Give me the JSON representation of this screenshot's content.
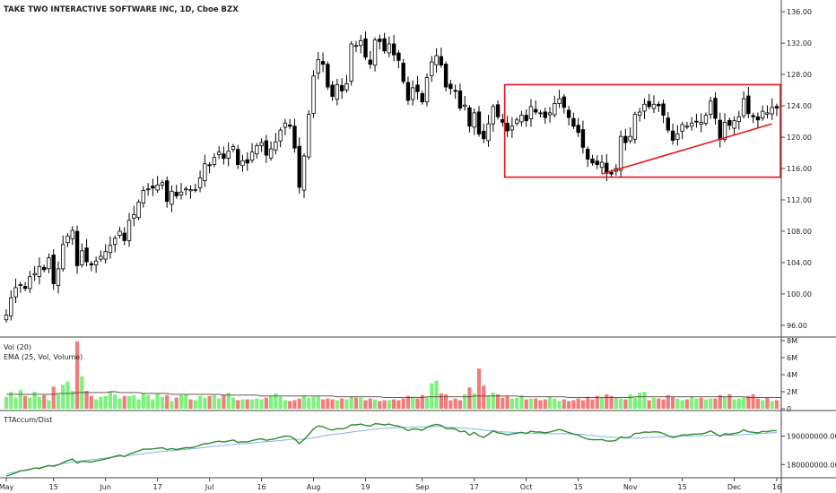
{
  "header": {
    "title": "TAKE TWO INTERACTIVE SOFTWARE INC, 1D, Cboe BZX"
  },
  "volume_pane": {
    "label1": "Vol (20)",
    "label2": "EMA (25, Vol, Volume)"
  },
  "indicator_pane": {
    "label": "TTAccum/Dist"
  },
  "colors": {
    "up_volume": "#7cf27c",
    "down_volume": "#f27b7b",
    "pattern": "#e8141e",
    "accum_line": "#2e8b2e",
    "accum_avg": "#7fb5e8",
    "candle": "#000000",
    "ema": "#5a3b3b"
  },
  "chart_data": [
    {
      "type": "candlestick",
      "title": "TAKE TWO INTERACTIVE SOFTWARE INC, 1D, Cboe BZX",
      "xlabel": "",
      "ylabel": "",
      "x_ticks": [
        "May",
        "15",
        "Jun",
        "17",
        "Jul",
        "16",
        "Aug",
        "19",
        "Sep",
        "17",
        "Oct",
        "15",
        "Nov",
        "15",
        "Dec",
        "16"
      ],
      "y_ticks": [
        "136.00",
        "132.00",
        "128.00",
        "124.00",
        "120.00",
        "116.00",
        "112.00",
        "108.00",
        "104.00",
        "100.00",
        "96.00"
      ],
      "ylim": [
        94.5,
        137.5
      ],
      "grid": false,
      "close": [
        97.3,
        99.5,
        100.8,
        101.2,
        100.7,
        102.2,
        102.6,
        103.5,
        103.1,
        104.6,
        101.3,
        103.2,
        106.3,
        107.4,
        108.1,
        103.6,
        105.5,
        104.1,
        103.7,
        104.2,
        104.8,
        105.4,
        106.2,
        107.1,
        108.0,
        106.8,
        109.4,
        110.1,
        111.7,
        113.2,
        113.4,
        113.5,
        113.9,
        114.2,
        111.8,
        113.1,
        112.5,
        113.0,
        113.4,
        113.3,
        113.3,
        114.8,
        116.6,
        116.4,
        117.4,
        118.1,
        117.3,
        118.2,
        118.8,
        116.5,
        117.0,
        116.7,
        118.1,
        118.9,
        119.3,
        117.7,
        118.5,
        119.4,
        120.9,
        121.8,
        121.4,
        118.6,
        113.6,
        117.6,
        122.9,
        127.8,
        129.9,
        129.3,
        126.4,
        125.2,
        126.7,
        125.9,
        126.8,
        131.9,
        131.7,
        132.3,
        130.2,
        129.3,
        132.4,
        132.2,
        131.0,
        131.9,
        130.5,
        129.8,
        127.1,
        124.7,
        126.3,
        125.8,
        124.5,
        127.6,
        129.6,
        130.4,
        129.2,
        126.4,
        126.2,
        125.9,
        123.7,
        124.1,
        121.4,
        123.1,
        120.4,
        119.8,
        121.7,
        123.9,
        122.6,
        121.9,
        120.8,
        121.4,
        122.2,
        122.8,
        122.1,
        123.9,
        123.2,
        123.1,
        122.5,
        123.1,
        124.3,
        124.9,
        123.8,
        122.5,
        121.4,
        120.6,
        118.7,
        117.2,
        116.7,
        116.5,
        116.8,
        115.4,
        115.3,
        116.0,
        120.1,
        119.3,
        120.1,
        122.9,
        123.2,
        124.2,
        123.9,
        124.2,
        124.0,
        122.8,
        120.9,
        119.6,
        120.4,
        121.6,
        121.4,
        121.8,
        122.0,
        121.9,
        122.8,
        124.6,
        122.4,
        119.7,
        121.9,
        121.5,
        122.1,
        122.6,
        124.9,
        123.0,
        122.6,
        122.2,
        123.3,
        123.1,
        123.8,
        123.7
      ]
    },
    {
      "type": "bar",
      "title": "Vol (20)",
      "series_names": [
        "Vol (20)",
        "EMA (25, Vol, Volume)"
      ],
      "y_ticks": [
        "8M",
        "6M",
        "4M",
        "2M",
        "0"
      ],
      "ylim": [
        0,
        8000000
      ],
      "volume": [
        1400000,
        2000000,
        1300000,
        2200000,
        1500000,
        1300000,
        2000000,
        1400000,
        1600000,
        1000000,
        2600000,
        1700000,
        2800000,
        3200000,
        2100000,
        7900000,
        3800000,
        2100000,
        1500000,
        1100000,
        1400000,
        1500000,
        2000000,
        1700000,
        1200000,
        1500000,
        1500000,
        1600000,
        1100000,
        1800000,
        1600000,
        1100000,
        1800000,
        1400000,
        1600000,
        900000,
        1300000,
        1600000,
        1700000,
        1100000,
        1000000,
        1500000,
        1300000,
        1500000,
        1600000,
        1200000,
        1600000,
        1900000,
        1300000,
        1000000,
        1100000,
        1100000,
        1100000,
        1200000,
        1100000,
        1300000,
        1500000,
        1800000,
        1400000,
        1000000,
        900000,
        1000000,
        1200000,
        1600000,
        1300000,
        1400000,
        1500000,
        1100000,
        1200000,
        1100000,
        1000000,
        1200000,
        1100000,
        1400000,
        1300000,
        1300000,
        1000000,
        1200000,
        1100000,
        900000,
        1000000,
        1000000,
        1100000,
        1000000,
        1200000,
        1500000,
        1400000,
        1200000,
        1600000,
        1400000,
        3000000,
        3300000,
        1800000,
        1700000,
        1000000,
        1200000,
        1000000,
        1700000,
        2500000,
        1800000,
        4700000,
        2700000,
        1500000,
        1900000,
        1700000,
        1300000,
        1500000,
        1200000,
        1300000,
        1600000,
        1100000,
        1200000,
        1200000,
        1000000,
        1100000,
        1400000,
        1200000,
        900000,
        1100000,
        900000,
        1000000,
        1200000,
        1000000,
        1400000,
        1100000,
        1500000,
        1300000,
        1700000,
        1500000,
        1300000,
        1200000,
        1100000,
        1700000,
        1300000,
        1900000,
        2000000,
        1000000,
        1300000,
        1200000,
        1100000,
        1600000,
        1400000,
        1200000,
        1000000,
        1100000,
        1400000,
        1200000,
        1300000,
        1100000,
        1200000,
        1200000,
        1600000,
        1400000,
        1700000,
        1100000,
        1200000,
        1300000,
        1500000,
        1700000,
        1200000,
        1000000,
        1300000,
        900000,
        1000000,
        900000,
        1100000
      ],
      "ema": [
        1700000,
        1700000,
        1700000,
        1700000,
        1700000,
        1700000,
        1700000,
        1700000,
        1700000,
        1700000,
        1700000,
        1800000,
        1800000,
        1800000,
        1800000,
        1900000,
        1900000,
        1900000,
        1900000,
        1900000,
        1900000,
        1900000,
        2000000,
        2000000,
        1900000,
        1900000,
        1900000,
        1900000,
        1900000,
        1800000,
        1800000,
        1800000,
        1800000,
        1800000,
        1800000,
        1700000,
        1700000,
        1700000,
        1700000,
        1700000,
        1700000,
        1700000,
        1700000,
        1700000,
        1700000,
        1700000,
        1600000,
        1600000,
        1600000,
        1600000,
        1600000,
        1600000,
        1600000,
        1600000,
        1500000,
        1500000,
        1500000,
        1500000,
        1500000,
        1500000,
        1500000,
        1500000,
        1500000,
        1500000,
        1500000,
        1500000,
        1500000,
        1500000,
        1500000,
        1500000,
        1400000,
        1400000,
        1400000,
        1400000,
        1400000,
        1400000,
        1400000,
        1400000,
        1400000,
        1400000,
        1300000,
        1300000,
        1300000,
        1300000,
        1300000,
        1300000,
        1300000,
        1300000,
        1300000,
        1400000,
        1400000,
        1400000,
        1400000,
        1400000,
        1400000,
        1400000,
        1400000,
        1400000,
        1400000,
        1500000,
        1500000,
        1500000,
        1500000,
        1500000,
        1500000,
        1500000,
        1500000,
        1500000,
        1500000,
        1400000,
        1400000,
        1400000,
        1400000,
        1400000,
        1400000,
        1400000,
        1400000,
        1400000,
        1400000,
        1300000,
        1300000,
        1300000,
        1300000,
        1300000,
        1300000,
        1300000,
        1300000,
        1300000,
        1300000,
        1300000,
        1300000,
        1300000,
        1300000,
        1400000,
        1400000,
        1400000,
        1400000,
        1400000,
        1400000,
        1400000,
        1400000,
        1400000,
        1400000,
        1400000,
        1400000,
        1400000,
        1400000,
        1400000,
        1400000,
        1400000,
        1400000,
        1400000,
        1400000,
        1400000,
        1400000,
        1400000,
        1400000,
        1300000,
        1300000,
        1300000,
        1300000,
        1300000,
        1300000,
        1300000,
        1300000
      ]
    },
    {
      "type": "line",
      "title": "TTAccum/Dist",
      "y_ticks": [
        "190000000.00",
        "180000000.00"
      ],
      "ylim": [
        175700000,
        198300000
      ],
      "series_names": [
        "TTAccum/Dist",
        "average"
      ],
      "accum": [
        176000000,
        176500000,
        177100000,
        177800000,
        178000000,
        178300000,
        178800000,
        178600000,
        179200000,
        179700000,
        179400000,
        179900000,
        180700000,
        181400000,
        181900000,
        180500000,
        181200000,
        181000000,
        180900000,
        181300000,
        181600000,
        182000000,
        182400000,
        182900000,
        183300000,
        182800000,
        183700000,
        184200000,
        184800000,
        185400000,
        185400000,
        185500000,
        185700000,
        185900000,
        185200000,
        185600000,
        185300000,
        185600000,
        185900000,
        185900000,
        186200000,
        186800000,
        187300000,
        187400000,
        187900000,
        188200000,
        187900000,
        188300000,
        188600000,
        187800000,
        188000000,
        187900000,
        188400000,
        188800000,
        189000000,
        188500000,
        188800000,
        189100000,
        189600000,
        190000000,
        189900000,
        189000000,
        187300000,
        188800000,
        190600000,
        192500000,
        193500000,
        193300000,
        192500000,
        192100000,
        192600000,
        192500000,
        192900000,
        193900000,
        193900000,
        194200000,
        193700000,
        193500000,
        194300000,
        194200000,
        193900000,
        194200000,
        193700000,
        193500000,
        192800000,
        191900000,
        192500000,
        192400000,
        192000000,
        193100000,
        193700000,
        194100000,
        193700000,
        192600000,
        192600000,
        192500000,
        191500000,
        191700000,
        190300000,
        191300000,
        190100000,
        189500000,
        190600000,
        191800000,
        191100000,
        190900000,
        190400000,
        190700000,
        191000000,
        191300000,
        190900000,
        191700000,
        191400000,
        191400000,
        191100000,
        191400000,
        191900000,
        192300000,
        191800000,
        191200000,
        190700000,
        190300000,
        189500000,
        188900000,
        188700000,
        188700000,
        188800000,
        188300000,
        188200000,
        188500000,
        189700000,
        189400000,
        189700000,
        190900000,
        191000000,
        191400000,
        191300000,
        191500000,
        191400000,
        190900000,
        190100000,
        189500000,
        189900000,
        190400000,
        190400000,
        190600000,
        190700000,
        190700000,
        191100000,
        191800000,
        190900000,
        189900000,
        190800000,
        190600000,
        190900000,
        191200000,
        192200000,
        191500000,
        191300000,
        191100000,
        191600000,
        191500000,
        191900000,
        191900000
      ],
      "avg": [
        176800000,
        177100000,
        177400000,
        177800000,
        178100000,
        178400000,
        178700000,
        178900000,
        179200000,
        179500000,
        179700000,
        180000000,
        180300000,
        180600000,
        180900000,
        181100000,
        181300000,
        181500000,
        181700000,
        181900000,
        182100000,
        182300000,
        182500000,
        182700000,
        182900000,
        183000000,
        183200000,
        183400000,
        183600000,
        183800000,
        184000000,
        184200000,
        184400000,
        184600000,
        184700000,
        184900000,
        185000000,
        185200000,
        185300000,
        185500000,
        185600000,
        185800000,
        186000000,
        186200000,
        186400000,
        186600000,
        186700000,
        186900000,
        187100000,
        187200000,
        187300000,
        187400000,
        187600000,
        187700000,
        187900000,
        188000000,
        188100000,
        188300000,
        188400000,
        188600000,
        188800000,
        188800000,
        188800000,
        188900000,
        189100000,
        189400000,
        189700000,
        190000000,
        190300000,
        190500000,
        190700000,
        190900000,
        191100000,
        191400000,
        191600000,
        191800000,
        192000000,
        192200000,
        192400000,
        192500000,
        192700000,
        192800000,
        192900000,
        193000000,
        193100000,
        193100000,
        193200000,
        193200000,
        193200000,
        193200000,
        193200000,
        193300000,
        193300000,
        193200000,
        193100000,
        193000000,
        192900000,
        192800000,
        192600000,
        192500000,
        192300000,
        192100000,
        191900000,
        191800000,
        191600000,
        191500000,
        191400000,
        191300000,
        191200000,
        191100000,
        191000000,
        191000000,
        190900000,
        190900000,
        190800000,
        190800000,
        190800000,
        190800000,
        190800000,
        190800000,
        190700000,
        190600000,
        190500000,
        190300000,
        190200000,
        190000000,
        189900000,
        189700000,
        189600000,
        189500000,
        189400000,
        189300000,
        189300000,
        189200000,
        189300000,
        189400000,
        189500000,
        189600000,
        189700000,
        189800000,
        189900000,
        189900000,
        189900000,
        189900000,
        190000000,
        190000000,
        190000000,
        190100000,
        190100000,
        190200000,
        190300000,
        190300000,
        190300000,
        190300000,
        190400000,
        190400000,
        190500000,
        190600000,
        190700000,
        190800000,
        190900000,
        191000000,
        191100000,
        191200000
      ]
    }
  ]
}
